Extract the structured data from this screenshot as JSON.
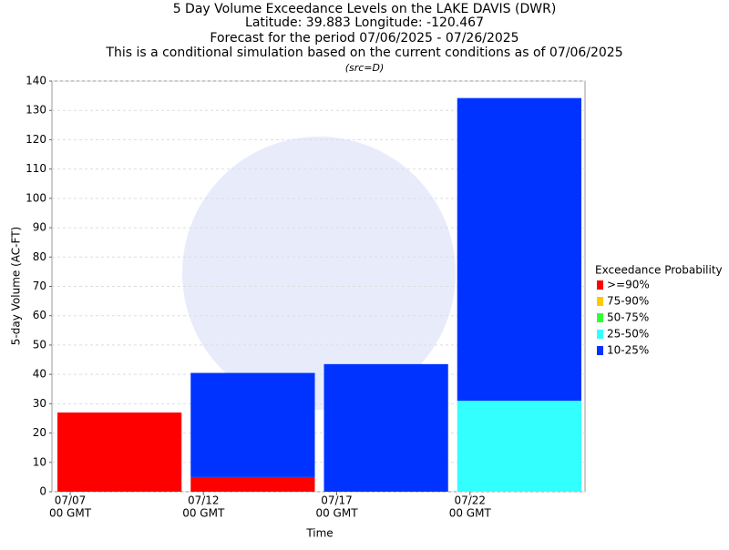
{
  "chart_data": {
    "type": "bar",
    "stacked": true,
    "title": [
      "5 Day Volume Exceedance Levels on the LAKE DAVIS (DWR)",
      "Latitude: 39.883 Longitude: -120.467",
      "Forecast for the period 07/06/2025 - 07/26/2025",
      "This is a conditional simulation based on the current conditions as of 07/06/2025"
    ],
    "subtitle": "(src=D)",
    "ylabel": "5-day Volume (AC-FT)",
    "xlabel": "Time",
    "categories": [
      "07/07",
      "07/12",
      "07/17",
      "07/22"
    ],
    "category_sublabel": "00 GMT",
    "legend_title": "Exceedance Probability",
    "legend_position": "right",
    "series": [
      {
        "name": ">=90%",
        "color": "#ff0000",
        "values": [
          27.0,
          5.0,
          0,
          0
        ]
      },
      {
        "name": "75-90%",
        "color": "#ffc800",
        "values": [
          0,
          0,
          0,
          0
        ]
      },
      {
        "name": "50-75%",
        "color": "#33ff33",
        "values": [
          0,
          0,
          0,
          0
        ]
      },
      {
        "name": "25-50%",
        "color": "#33ffff",
        "values": [
          0,
          0,
          0,
          31.0
        ]
      },
      {
        "name": "10-25%",
        "color": "#0033ff",
        "values": [
          0,
          35.5,
          43.5,
          103.2
        ]
      }
    ],
    "ylim": [
      0,
      140
    ],
    "yticks": [
      0,
      10,
      20,
      30,
      40,
      50,
      60,
      70,
      80,
      90,
      100,
      110,
      120,
      130,
      140
    ],
    "grid": true
  }
}
